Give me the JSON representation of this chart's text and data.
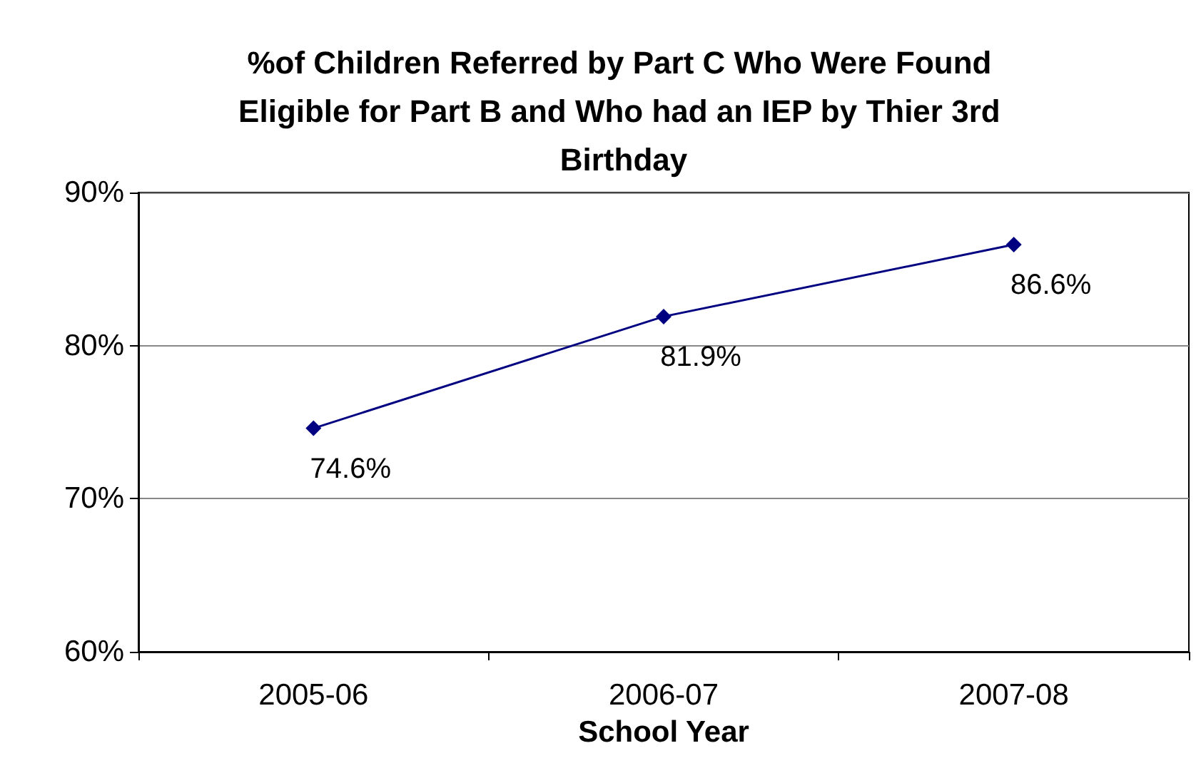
{
  "chart_data": {
    "type": "line",
    "title": "%of Children Referred by Part C Who Were Found Eligible for Part B and Who had an IEP by Thier 3rd Birthday",
    "xlabel": "School Year",
    "categories": [
      "2005-06",
      "2006-07",
      "2007-08"
    ],
    "series": [
      {
        "color": "#000080",
        "values": [
          74.6,
          81.9,
          86.6
        ],
        "value_labels": [
          "74.6%",
          "81.9%",
          "86.6%"
        ]
      }
    ],
    "ylim": [
      60,
      90
    ],
    "yticks": [
      {
        "value": 60,
        "label": "60%"
      },
      {
        "value": 70,
        "label": "70%"
      },
      {
        "value": 80,
        "label": "80%"
      },
      {
        "value": 90,
        "label": "90%"
      }
    ],
    "grid": "y",
    "marker": "diamond",
    "line_style": "solid"
  }
}
